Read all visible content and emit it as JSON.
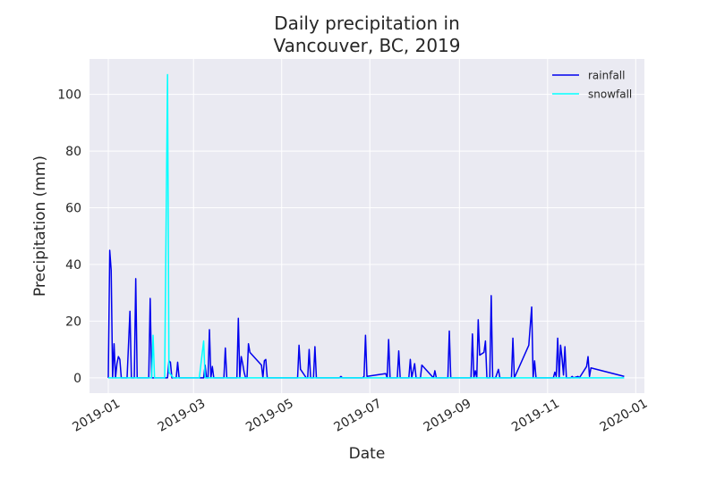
{
  "chart_data": {
    "type": "line",
    "title_lines": [
      "Daily precipitation in",
      "Vancouver, BC, 2019"
    ],
    "xlabel": "Date",
    "ylabel": "Precipitation (mm)",
    "x_ticks": [
      "2019-01",
      "2019-03",
      "2019-05",
      "2019-07",
      "2019-09",
      "2019-11",
      "2020-01"
    ],
    "y_ticks": [
      0,
      20,
      40,
      60,
      80,
      100
    ],
    "xlim": [
      "2018-12-19",
      "2020-01-07"
    ],
    "ylim": [
      -5.4,
      112.5
    ],
    "grid": true,
    "legend_position": "top-right",
    "series": [
      {
        "name": "rainfall",
        "color": "#0000ee",
        "points": [
          [
            "2019-01-01",
            0
          ],
          [
            "2019-01-02",
            45
          ],
          [
            "2019-01-03",
            38
          ],
          [
            "2019-01-04",
            0
          ],
          [
            "2019-01-05",
            12
          ],
          [
            "2019-01-06",
            0
          ],
          [
            "2019-01-07",
            5
          ],
          [
            "2019-01-08",
            7.5
          ],
          [
            "2019-01-09",
            6.5
          ],
          [
            "2019-01-10",
            0
          ],
          [
            "2019-01-14",
            0
          ],
          [
            "2019-01-16",
            23.5
          ],
          [
            "2019-01-17",
            0
          ],
          [
            "2019-01-19",
            0
          ],
          [
            "2019-01-20",
            35
          ],
          [
            "2019-01-21",
            0
          ],
          [
            "2019-01-29",
            0
          ],
          [
            "2019-01-30",
            28
          ],
          [
            "2019-01-31",
            0
          ],
          [
            "2019-02-11",
            0
          ],
          [
            "2019-02-12",
            6
          ],
          [
            "2019-02-13",
            5.5
          ],
          [
            "2019-02-14",
            0
          ],
          [
            "2019-02-17",
            0
          ],
          [
            "2019-02-18",
            5.5
          ],
          [
            "2019-02-19",
            0
          ],
          [
            "2019-03-08",
            0
          ],
          [
            "2019-03-09",
            4.5
          ],
          [
            "2019-03-10",
            0
          ],
          [
            "2019-03-11",
            0
          ],
          [
            "2019-03-12",
            17
          ],
          [
            "2019-03-13",
            0
          ],
          [
            "2019-03-14",
            4
          ],
          [
            "2019-03-15",
            0
          ],
          [
            "2019-03-22",
            0
          ],
          [
            "2019-03-23",
            10.5
          ],
          [
            "2019-03-24",
            0
          ],
          [
            "2019-03-31",
            0
          ],
          [
            "2019-04-01",
            21
          ],
          [
            "2019-04-02",
            0
          ],
          [
            "2019-04-03",
            7.5
          ],
          [
            "2019-04-04",
            5
          ],
          [
            "2019-04-05",
            2
          ],
          [
            "2019-04-06",
            0
          ],
          [
            "2019-04-07",
            0
          ],
          [
            "2019-04-08",
            12
          ],
          [
            "2019-04-09",
            9
          ],
          [
            "2019-04-17",
            4.5
          ],
          [
            "2019-04-18",
            0
          ],
          [
            "2019-04-19",
            6
          ],
          [
            "2019-04-20",
            6.5
          ],
          [
            "2019-04-21",
            0
          ],
          [
            "2019-05-12",
            0
          ],
          [
            "2019-05-13",
            11.5
          ],
          [
            "2019-05-14",
            3
          ],
          [
            "2019-05-18",
            0
          ],
          [
            "2019-05-19",
            0
          ],
          [
            "2019-05-20",
            10
          ],
          [
            "2019-05-21",
            0
          ],
          [
            "2019-05-23",
            0
          ],
          [
            "2019-05-24",
            11
          ],
          [
            "2019-05-25",
            0
          ],
          [
            "2019-06-10",
            0
          ],
          [
            "2019-06-11",
            0.5
          ],
          [
            "2019-06-12",
            0
          ],
          [
            "2019-06-26",
            0
          ],
          [
            "2019-06-27",
            0.5
          ],
          [
            "2019-06-28",
            15
          ],
          [
            "2019-06-29",
            0.5
          ],
          [
            "2019-07-12",
            1.5
          ],
          [
            "2019-07-13",
            0
          ],
          [
            "2019-07-14",
            13.5
          ],
          [
            "2019-07-15",
            0
          ],
          [
            "2019-07-20",
            0
          ],
          [
            "2019-07-21",
            9.5
          ],
          [
            "2019-07-22",
            0
          ],
          [
            "2019-07-28",
            0
          ],
          [
            "2019-07-29",
            6.5
          ],
          [
            "2019-07-30",
            0
          ],
          [
            "2019-08-01",
            5
          ],
          [
            "2019-08-02",
            0
          ],
          [
            "2019-08-05",
            0
          ],
          [
            "2019-08-06",
            4.5
          ],
          [
            "2019-08-14",
            0
          ],
          [
            "2019-08-15",
            2.5
          ],
          [
            "2019-08-16",
            0
          ],
          [
            "2019-08-24",
            0
          ],
          [
            "2019-08-25",
            16.5
          ],
          [
            "2019-08-26",
            0
          ],
          [
            "2019-09-09",
            0
          ],
          [
            "2019-09-10",
            15.5
          ],
          [
            "2019-09-11",
            0
          ],
          [
            "2019-09-12",
            2.5
          ],
          [
            "2019-09-13",
            0
          ],
          [
            "2019-09-14",
            20.5
          ],
          [
            "2019-09-15",
            8
          ],
          [
            "2019-09-18",
            9
          ],
          [
            "2019-09-19",
            13
          ],
          [
            "2019-09-20",
            0
          ],
          [
            "2019-09-22",
            0
          ],
          [
            "2019-09-23",
            29
          ],
          [
            "2019-09-24",
            0
          ],
          [
            "2019-09-26",
            0
          ],
          [
            "2019-09-28",
            3
          ],
          [
            "2019-09-29",
            0
          ],
          [
            "2019-10-07",
            0
          ],
          [
            "2019-10-08",
            14
          ],
          [
            "2019-10-09",
            0
          ],
          [
            "2019-10-19",
            11.5
          ],
          [
            "2019-10-21",
            25
          ],
          [
            "2019-10-22",
            0
          ],
          [
            "2019-10-23",
            6
          ],
          [
            "2019-10-24",
            0
          ],
          [
            "2019-11-05",
            0
          ],
          [
            "2019-11-06",
            2
          ],
          [
            "2019-11-07",
            0.5
          ],
          [
            "2019-11-08",
            14
          ],
          [
            "2019-11-09",
            0
          ],
          [
            "2019-11-10",
            11.5
          ],
          [
            "2019-11-11",
            7
          ],
          [
            "2019-11-12",
            1
          ],
          [
            "2019-11-13",
            11
          ],
          [
            "2019-11-14",
            0
          ],
          [
            "2019-11-17",
            0
          ],
          [
            "2019-11-18",
            0.5
          ],
          [
            "2019-11-19",
            0
          ],
          [
            "2019-11-22",
            0.5
          ],
          [
            "2019-11-23",
            0
          ],
          [
            "2019-11-28",
            4
          ],
          [
            "2019-11-29",
            7.5
          ],
          [
            "2019-11-30",
            0.5
          ],
          [
            "2019-12-01",
            3.5
          ],
          [
            "2019-12-24",
            0.5
          ]
        ]
      },
      {
        "name": "snowfall",
        "color": "#00ffff",
        "points": [
          [
            "2019-01-01",
            0
          ],
          [
            "2019-01-31",
            0
          ],
          [
            "2019-02-01",
            15
          ],
          [
            "2019-02-02",
            0
          ],
          [
            "2019-02-09",
            0
          ],
          [
            "2019-02-11",
            107
          ],
          [
            "2019-02-12",
            2
          ],
          [
            "2019-02-15",
            0
          ],
          [
            "2019-03-05",
            0
          ],
          [
            "2019-03-08",
            13
          ],
          [
            "2019-03-09",
            0
          ],
          [
            "2019-12-24",
            0
          ]
        ]
      }
    ]
  }
}
